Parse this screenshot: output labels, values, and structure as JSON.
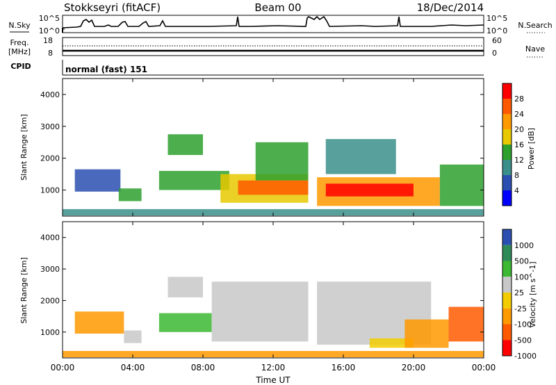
{
  "header": {
    "title": "Stokkseyri (fitACF)",
    "beam": "Beam 00",
    "date": "18/Dec/2014"
  },
  "nsky_panel": {
    "left_label": "N.Sky",
    "left_ticks": [
      "10^5",
      "10^0"
    ],
    "right_ticks": [
      "10^5",
      "10^0"
    ],
    "right_label": "N.Search"
  },
  "freq_panel": {
    "left_label_top": "Freq.",
    "left_label_unit": "[MHz]",
    "left_ticks": [
      "18",
      "8"
    ],
    "right_ticks": [
      "60",
      "0"
    ],
    "right_label": "Nave",
    "cpid_label": "CPID"
  },
  "mode_text": "normal (fast) 151",
  "x_axis": {
    "ticks": [
      "00:00",
      "04:00",
      "08:00",
      "12:00",
      "16:00",
      "20:00",
      "00:00"
    ],
    "label": "Time UT"
  },
  "chart_data": [
    {
      "type": "heatmap",
      "ylabel": "Slant Range [km]",
      "yticks": [
        1000,
        2000,
        3000,
        4000
      ],
      "xlim_hours": [
        0,
        24
      ],
      "ylim_km": [
        180,
        4500
      ],
      "colorbar": {
        "label": "Power [dB]",
        "ticks": [
          "28",
          "24",
          "20",
          "16",
          "12",
          "8",
          "4"
        ],
        "colors": [
          "#ff0000",
          "#ff5a00",
          "#ff9900",
          "#e8c800",
          "#2ea02e",
          "#3b8f8a",
          "#2a4fb0",
          "#0000ff"
        ]
      },
      "regions": [
        {
          "t0": 0.0,
          "t1": 24.0,
          "r0": 200,
          "r1": 400,
          "level": 5
        },
        {
          "t0": 0.7,
          "t1": 3.3,
          "r0": 950,
          "r1": 1650,
          "level": 6
        },
        {
          "t0": 3.2,
          "t1": 4.5,
          "r0": 650,
          "r1": 1050,
          "level": 4
        },
        {
          "t0": 5.5,
          "t1": 9.5,
          "r0": 1000,
          "r1": 1600,
          "level": 4
        },
        {
          "t0": 6.0,
          "t1": 8.0,
          "r0": 2100,
          "r1": 2750,
          "level": 4
        },
        {
          "t0": 9.0,
          "t1": 14.0,
          "r0": 600,
          "r1": 1500,
          "level": 3
        },
        {
          "t0": 10.0,
          "t1": 14.0,
          "r0": 850,
          "r1": 1300,
          "level": 1
        },
        {
          "t0": 11.0,
          "t1": 14.0,
          "r0": 1300,
          "r1": 2500,
          "level": 4
        },
        {
          "t0": 14.5,
          "t1": 21.5,
          "r0": 500,
          "r1": 1400,
          "level": 2
        },
        {
          "t0": 15.0,
          "t1": 20.0,
          "r0": 800,
          "r1": 1200,
          "level": 0
        },
        {
          "t0": 15.0,
          "t1": 19.0,
          "r0": 1500,
          "r1": 2600,
          "level": 5
        },
        {
          "t0": 21.5,
          "t1": 24.0,
          "r0": 500,
          "r1": 1800,
          "level": 4
        }
      ]
    },
    {
      "type": "heatmap",
      "ylabel": "Slant Range [km]",
      "yticks": [
        1000,
        2000,
        3000,
        4000
      ],
      "xlim_hours": [
        0,
        24
      ],
      "ylim_km": [
        180,
        4500
      ],
      "colorbar": {
        "label": "Velocity [m s^-1]",
        "ticks": [
          "1000",
          "500",
          "100",
          "25",
          "-25",
          "-100",
          "-500",
          "-1000"
        ],
        "colors": [
          "#2a4fb0",
          "#2e8b57",
          "#3cb832",
          "#c8c8c8",
          "#f2cc00",
          "#ff9900",
          "#ff5a00",
          "#ff0000"
        ]
      },
      "regions": [
        {
          "t0": 0.0,
          "t1": 24.0,
          "r0": 200,
          "r1": 400,
          "level": 5
        },
        {
          "t0": 0.7,
          "t1": 3.5,
          "r0": 950,
          "r1": 1650,
          "level": 5
        },
        {
          "t0": 3.5,
          "t1": 4.5,
          "r0": 650,
          "r1": 1050,
          "level": 3
        },
        {
          "t0": 5.5,
          "t1": 8.5,
          "r0": 1000,
          "r1": 1600,
          "level": 2
        },
        {
          "t0": 6.0,
          "t1": 8.0,
          "r0": 2100,
          "r1": 2750,
          "level": 3
        },
        {
          "t0": 8.5,
          "t1": 14.0,
          "r0": 700,
          "r1": 2600,
          "level": 3
        },
        {
          "t0": 14.5,
          "t1": 21.0,
          "r0": 600,
          "r1": 2600,
          "level": 3
        },
        {
          "t0": 17.5,
          "t1": 20.0,
          "r0": 500,
          "r1": 800,
          "level": 4
        },
        {
          "t0": 19.5,
          "t1": 22.0,
          "r0": 500,
          "r1": 1400,
          "level": 5
        },
        {
          "t0": 22.0,
          "t1": 24.0,
          "r0": 700,
          "r1": 1800,
          "level": 6
        }
      ]
    }
  ]
}
